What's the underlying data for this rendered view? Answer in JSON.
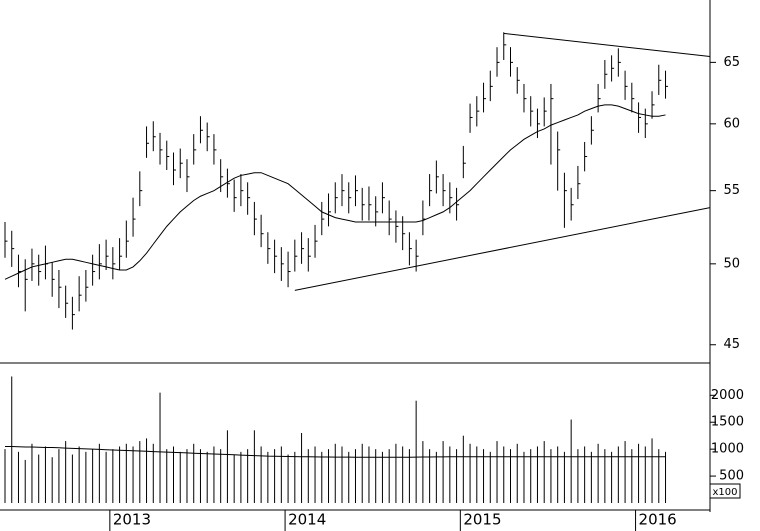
{
  "chart_data": [
    {
      "type": "ohlc",
      "log_scale": true,
      "color": "#000000",
      "categories": [
        null,
        null,
        null,
        null,
        null,
        null,
        null,
        null,
        null,
        null,
        null,
        null,
        null,
        null,
        null,
        null,
        "2013",
        null,
        null,
        null,
        null,
        null,
        null,
        null,
        null,
        null,
        null,
        null,
        null,
        null,
        null,
        null,
        null,
        null,
        null,
        null,
        null,
        null,
        null,
        null,
        null,
        null,
        "2014",
        null,
        null,
        null,
        null,
        null,
        null,
        null,
        null,
        null,
        null,
        null,
        null,
        null,
        null,
        null,
        null,
        null,
        null,
        null,
        null,
        null,
        null,
        null,
        null,
        null,
        "2015",
        null,
        null,
        null,
        null,
        null,
        null,
        null,
        null,
        null,
        null,
        null,
        null,
        null,
        null,
        null,
        null,
        null,
        null,
        null,
        null,
        null,
        null,
        null,
        null,
        null,
        "2016",
        null,
        null,
        null,
        null
      ],
      "high": [
        52.8,
        52.2,
        50.6,
        50.3,
        51.0,
        50.6,
        51.2,
        50.1,
        49.6,
        48.6,
        47.9,
        49.2,
        49.6,
        50.6,
        51.3,
        51.6,
        51.1,
        51.7,
        52.9,
        54.5,
        56.4,
        59.8,
        60.2,
        59.3,
        58.7,
        57.8,
        58.1,
        57.3,
        59.2,
        60.6,
        60.1,
        59.2,
        57.3,
        56.6,
        55.8,
        56.2,
        55.6,
        54.2,
        53.3,
        52.1,
        51.6,
        51.1,
        50.8,
        51.6,
        52.1,
        51.7,
        52.6,
        54.2,
        54.8,
        55.6,
        56.2,
        55.6,
        56.1,
        55.2,
        55.3,
        54.6,
        55.6,
        54.3,
        53.6,
        53.2,
        52.1,
        51.6,
        54.3,
        56.2,
        57.2,
        56.2,
        55.6,
        55.2,
        58.3,
        61.6,
        62.2,
        63.3,
        64.3,
        66.3,
        67.6,
        66.3,
        64.6,
        63.2,
        62.2,
        61.2,
        62.1,
        63.2,
        59.4,
        56.3,
        55.2,
        56.8,
        58.6,
        60.6,
        63.2,
        65.2,
        65.6,
        66.2,
        64.3,
        63.3,
        61.7,
        61.2,
        62.6,
        64.8,
        64.3
      ],
      "low": [
        50.4,
        49.8,
        48.5,
        47.0,
        48.9,
        48.6,
        49.0,
        47.9,
        47.2,
        46.6,
        45.9,
        47.0,
        47.6,
        48.6,
        49.0,
        49.6,
        49.0,
        49.6,
        50.4,
        51.8,
        53.9,
        57.4,
        57.9,
        56.9,
        56.5,
        55.4,
        55.9,
        54.9,
        56.9,
        58.5,
        57.9,
        56.9,
        54.9,
        54.5,
        53.5,
        53.9,
        53.3,
        51.9,
        51.1,
        50.0,
        49.4,
        48.9,
        48.5,
        49.5,
        50.0,
        49.5,
        50.4,
        51.9,
        52.5,
        53.4,
        53.9,
        53.4,
        53.9,
        52.9,
        52.9,
        52.5,
        53.4,
        51.9,
        51.4,
        50.9,
        49.9,
        49.5,
        51.9,
        53.9,
        54.8,
        53.9,
        53.4,
        52.9,
        55.9,
        59.3,
        59.8,
        60.9,
        61.8,
        63.8,
        65.2,
        63.8,
        62.4,
        60.9,
        59.8,
        58.9,
        59.8,
        56.9,
        55.0,
        52.4,
        52.9,
        54.4,
        56.4,
        58.4,
        60.9,
        62.8,
        63.4,
        63.8,
        61.9,
        60.9,
        59.3,
        58.9,
        60.4,
        62.3,
        62.0
      ],
      "close": [
        51.5,
        51.0,
        49.5,
        49.0,
        50.0,
        49.5,
        50.0,
        49.0,
        48.5,
        47.5,
        46.8,
        48.0,
        48.5,
        49.5,
        50.0,
        50.5,
        50.0,
        50.5,
        51.5,
        53.0,
        55.0,
        58.5,
        59.0,
        58.0,
        57.5,
        56.5,
        57.0,
        56.0,
        58.0,
        59.5,
        59.0,
        58.0,
        56.0,
        55.5,
        54.5,
        55.0,
        54.5,
        53.0,
        52.0,
        51.0,
        50.5,
        50.0,
        49.5,
        50.5,
        51.0,
        50.5,
        51.5,
        53.0,
        53.5,
        54.5,
        55.0,
        54.5,
        55.0,
        54.0,
        54.0,
        53.5,
        54.5,
        53.0,
        52.5,
        52.0,
        51.0,
        50.5,
        53.0,
        55.0,
        56.0,
        55.0,
        54.5,
        54.0,
        57.0,
        60.5,
        61.0,
        62.0,
        63.0,
        65.0,
        66.5,
        65.0,
        63.5,
        62.0,
        61.0,
        60.0,
        61.0,
        62.0,
        58.0,
        55.0,
        54.0,
        55.5,
        57.5,
        59.5,
        62.0,
        64.0,
        64.5,
        65.0,
        63.0,
        62.0,
        60.5,
        60.0,
        61.5,
        63.5,
        63.0
      ],
      "average": [
        49.0,
        49.2,
        49.4,
        49.6,
        49.8,
        49.9,
        50.0,
        50.1,
        50.2,
        50.3,
        50.3,
        50.2,
        50.1,
        50.0,
        49.9,
        49.8,
        49.7,
        49.6,
        49.6,
        49.8,
        50.2,
        50.7,
        51.3,
        51.9,
        52.5,
        53.0,
        53.5,
        53.9,
        54.3,
        54.6,
        54.8,
        55.0,
        55.3,
        55.6,
        55.9,
        56.1,
        56.2,
        56.3,
        56.3,
        56.1,
        55.9,
        55.7,
        55.5,
        55.1,
        54.7,
        54.3,
        53.9,
        53.5,
        53.3,
        53.1,
        53.0,
        52.9,
        52.8,
        52.8,
        52.8,
        52.8,
        52.8,
        52.8,
        52.8,
        52.8,
        52.8,
        52.8,
        52.9,
        53.1,
        53.3,
        53.5,
        53.8,
        54.2,
        54.6,
        55.0,
        55.5,
        56.0,
        56.5,
        57.0,
        57.5,
        58.0,
        58.4,
        58.8,
        59.1,
        59.4,
        59.6,
        59.9,
        60.1,
        60.3,
        60.5,
        60.7,
        61.0,
        61.2,
        61.4,
        61.5,
        61.5,
        61.4,
        61.2,
        61.0,
        60.8,
        60.7,
        60.6,
        60.6,
        60.7
      ],
      "trendlines": [
        [
          67.5,
          65.5
        ],
        [
          48.3,
          53.8
        ]
      ],
      "ylim": [
        44,
        70.5
      ],
      "yticks": [
        45,
        50,
        55,
        60,
        65
      ]
    },
    {
      "type": "volume",
      "color": "#000000",
      "unit_label": "x100",
      "values": [
        1000,
        2350,
        950,
        800,
        1100,
        900,
        1050,
        850,
        1000,
        1150,
        900,
        1050,
        950,
        1000,
        1100,
        950,
        1000,
        1050,
        1100,
        1050,
        1150,
        1200,
        1100,
        2050,
        1000,
        1050,
        950,
        1000,
        1100,
        1000,
        950,
        1050,
        1000,
        1350,
        900,
        950,
        1000,
        1350,
        1050,
        950,
        1000,
        1050,
        900,
        950,
        1300,
        1000,
        1050,
        950,
        1000,
        1100,
        1050,
        950,
        1000,
        1100,
        1050,
        1000,
        950,
        1000,
        1100,
        1050,
        1000,
        1900,
        1150,
        1000,
        950,
        1150,
        1050,
        1000,
        1250,
        1100,
        1050,
        1000,
        950,
        1150,
        1050,
        1000,
        1100,
        950,
        1000,
        1050,
        1150,
        1000,
        1050,
        950,
        1550,
        1000,
        1050,
        950,
        1100,
        1000,
        950,
        1050,
        1150,
        1000,
        1100,
        1050,
        1200,
        1000,
        950
      ],
      "average": [
        1050,
        1050,
        1045,
        1040,
        1040,
        1035,
        1030,
        1030,
        1025,
        1020,
        1015,
        1010,
        1005,
        1000,
        995,
        990,
        985,
        980,
        975,
        970,
        965,
        960,
        955,
        950,
        945,
        940,
        935,
        930,
        925,
        920,
        915,
        910,
        905,
        900,
        895,
        890,
        885,
        880,
        875,
        870,
        868,
        866,
        864,
        862,
        860,
        858,
        856,
        855,
        854,
        853,
        852,
        851,
        850,
        850,
        850,
        850,
        850,
        850,
        850,
        850,
        850,
        852,
        854,
        855,
        856,
        857,
        858,
        859,
        860,
        860,
        860,
        860,
        860,
        860,
        860,
        860,
        860,
        860,
        860,
        860,
        860,
        860,
        860,
        860,
        860,
        860,
        860,
        860,
        860,
        860,
        860,
        860,
        860,
        860,
        860,
        860,
        860,
        860,
        860
      ],
      "ylim": [
        0,
        2600
      ],
      "yticks": [
        500,
        1000,
        1500,
        2000
      ]
    }
  ]
}
